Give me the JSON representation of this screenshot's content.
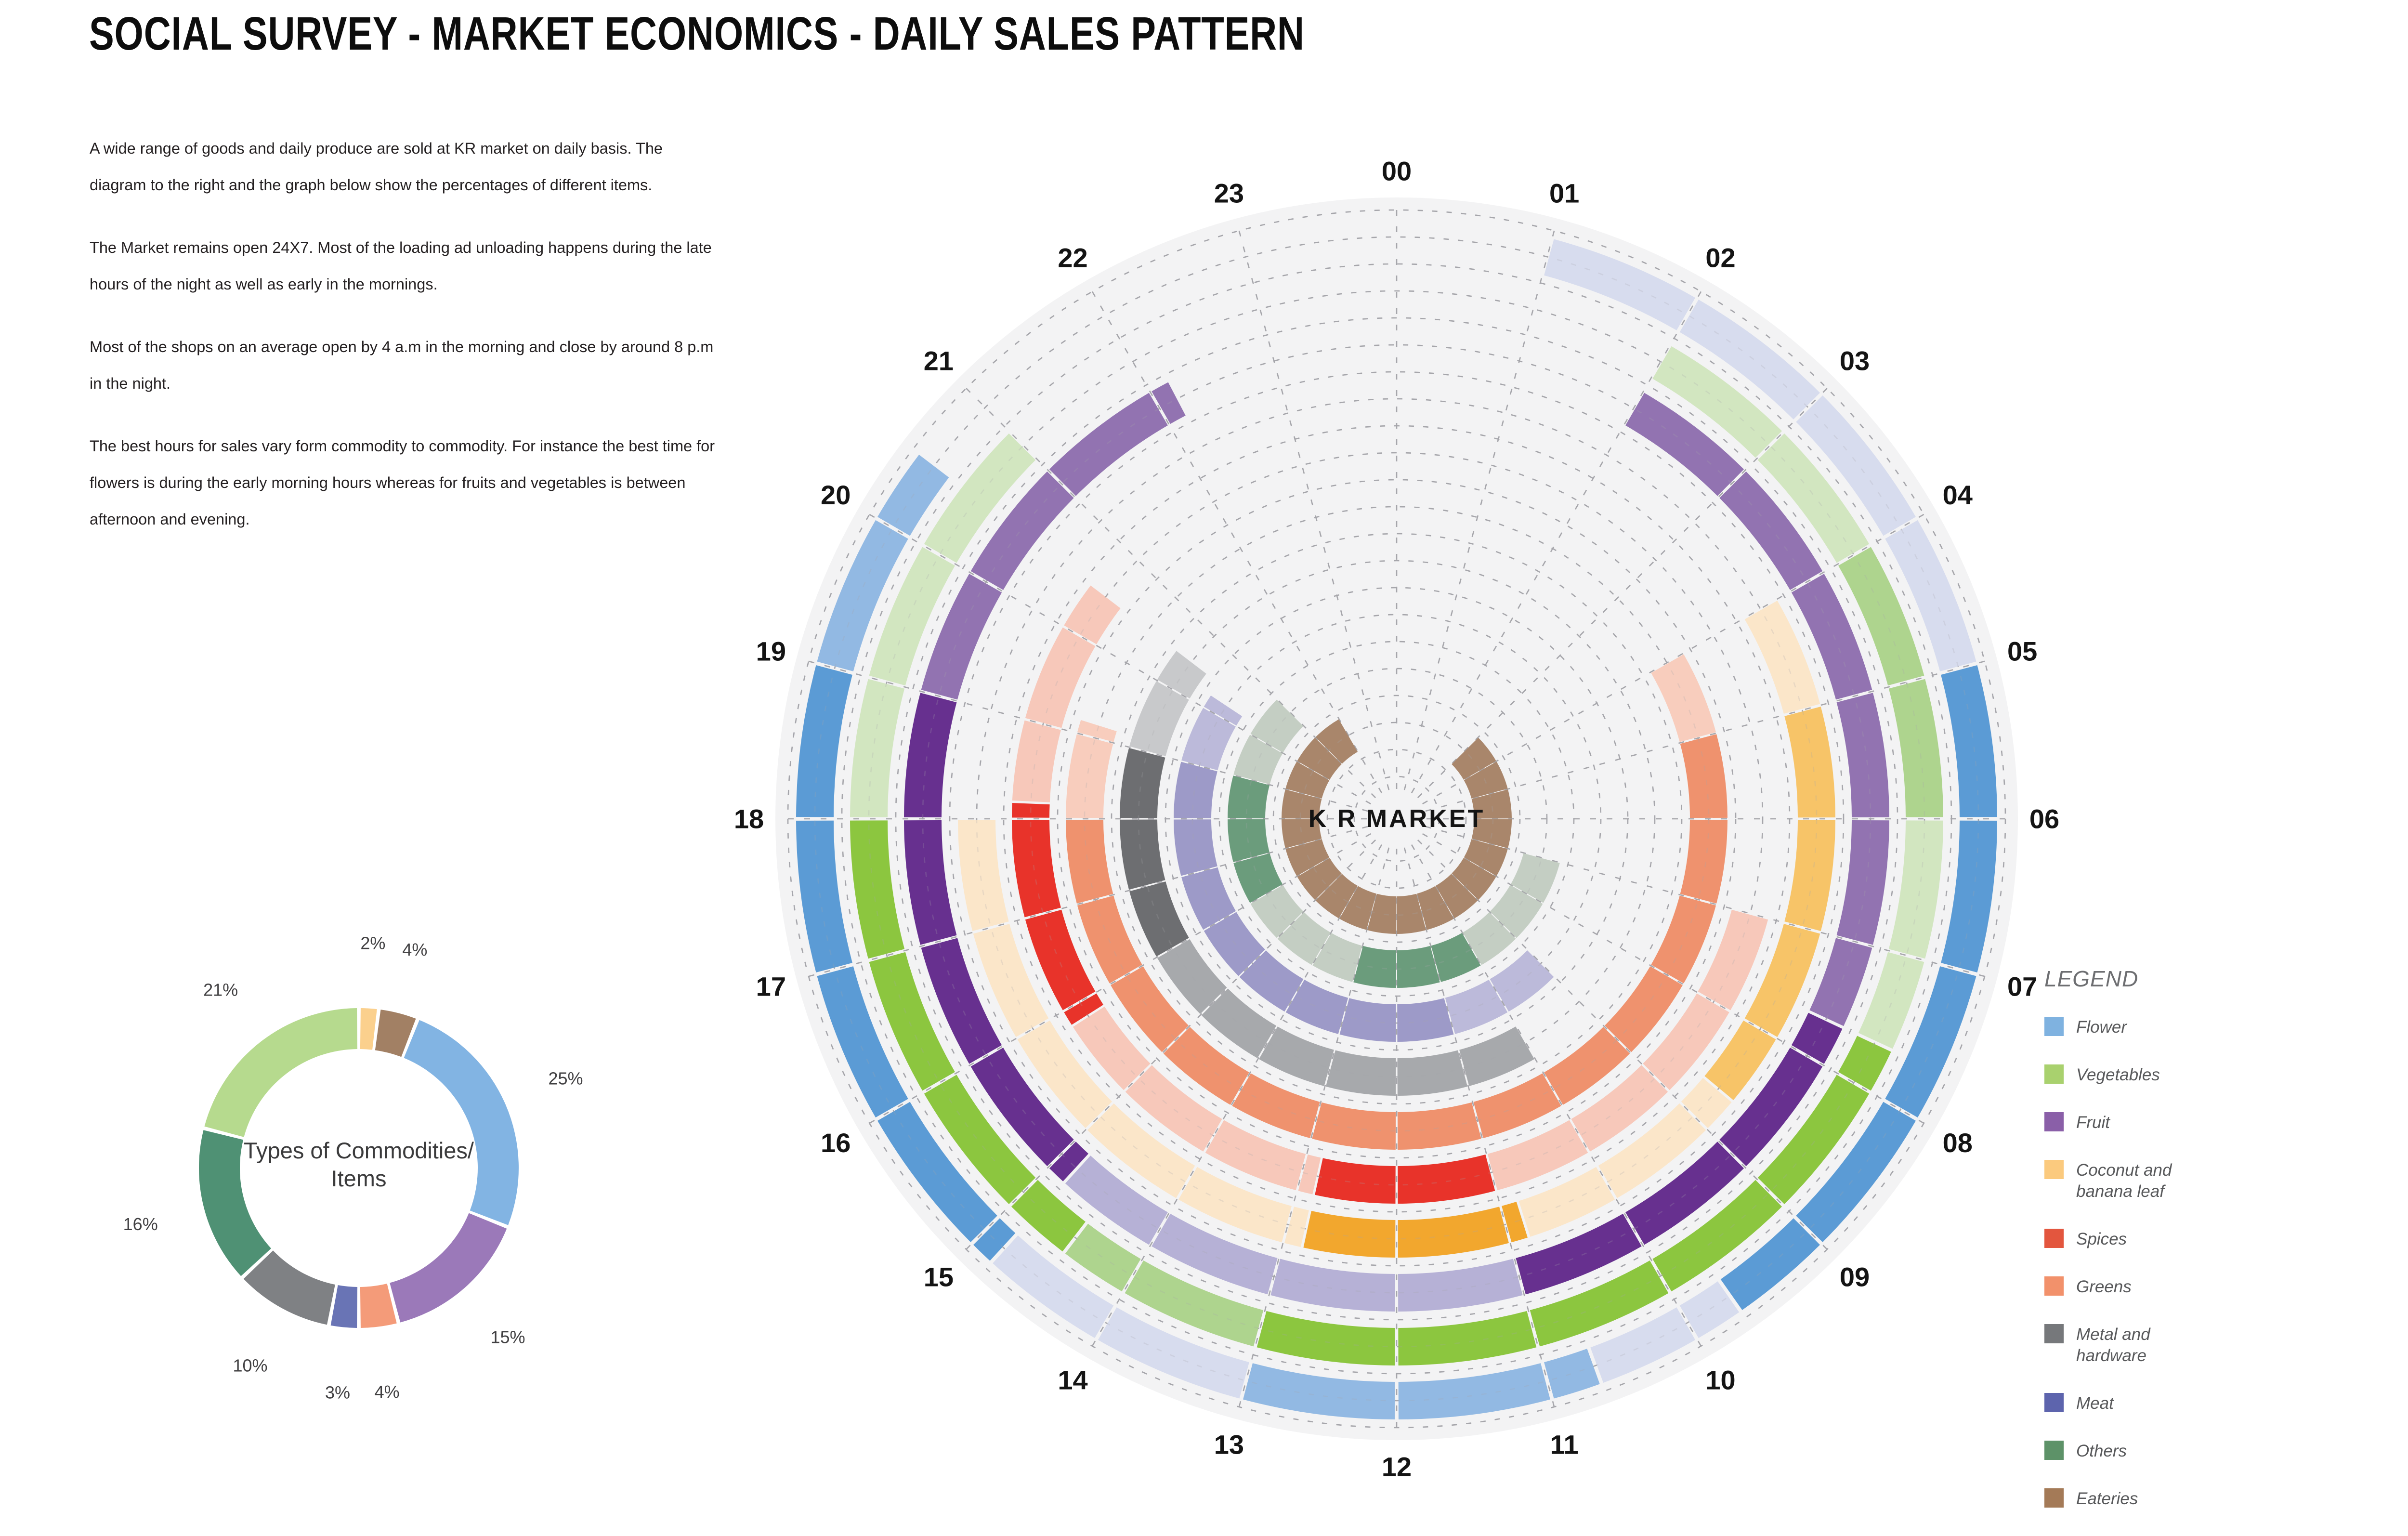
{
  "title": "SOCIAL SURVEY - MARKET ECONOMICS - DAILY SALES PATTERN",
  "paragraphs": [
    "A wide range of goods and daily produce are sold at KR market on daily basis. The diagram to the right and the graph below show the percentages of different items.",
    "The Market remains open 24X7. Most of the loading ad unloading happens during the late hours of the night as well as early in the mornings.",
    "Most of the shops on an average open by 4 a.m in the morning and close by around 8 p.m in the night.",
    "The best hours for sales vary form commodity to commodity. For instance the best time for flowers is during the early morning hours whereas for fruits and vegetables is between afternoon and evening."
  ],
  "commodities": {
    "flower": {
      "name": "Flower",
      "swatch": "#7fb2e0",
      "donut": "#82b4e3",
      "ring": {
        "D": "#5b9bd5",
        "M": "#92b9e3",
        "L": "#d7dcee"
      }
    },
    "vegetables": {
      "name": "Vegetables",
      "swatch": "#a9d16e",
      "donut": "#b6da8e",
      "ring": {
        "D": "#8cc63f",
        "M": "#aed48e",
        "L": "#d2e6c0"
      }
    },
    "fruit": {
      "name": "Fruit",
      "swatch": "#8a5fa8",
      "donut": "#9b79b9",
      "ring": {
        "D": "#67308f",
        "M": "#9273b1",
        "L": "#b6b1d6"
      }
    },
    "coconut": {
      "name": "Coconut and banana leaf",
      "swatch": "#fbca7e",
      "donut": "#fbd08d",
      "ring": {
        "D": "#f2a72e",
        "M": "#f7c468",
        "L": "#fbe6c9"
      }
    },
    "spices": {
      "name": "Spices",
      "swatch": "#e3563e",
      "donut": "#e8332a",
      "ring": {
        "D": "#e8332a",
        "M": "#ef7b62",
        "L": "#f7c8ba"
      }
    },
    "greens": {
      "name": "Greens",
      "swatch": "#f2916b",
      "donut": "#f49b79",
      "ring": {
        "D": "#ed8a63",
        "M": "#ef926e",
        "L": "#f8cdbd"
      }
    },
    "metal": {
      "name": "Metal and hardware",
      "swatch": "#76787b",
      "donut": "#7f8184",
      "ring": {
        "D": "#6d6e71",
        "M": "#a7a9ac",
        "L": "#c8c9cb"
      }
    },
    "meat": {
      "name": "Meat",
      "swatch": "#5d64ad",
      "donut": "#6974b5",
      "ring": {
        "D": "#5f66ad",
        "M": "#9d9ac8",
        "L": "#bcbada"
      }
    },
    "others": {
      "name": "Others",
      "swatch": "#5d9268",
      "donut": "#4f9174",
      "ring": {
        "D": "#6b9c7c",
        "M": "#9ab8a4",
        "L": "#c4cec3"
      }
    },
    "eateries": {
      "name": "Eateries",
      "swatch": "#a47a57",
      "donut": "#a28064",
      "ring": {
        "D": "#a9866b",
        "M": "#c4aa92",
        "L": "#dccaba"
      }
    }
  },
  "donut": {
    "title_lines": [
      "Types of Commodities/",
      "Items"
    ],
    "slices": [
      {
        "commodity": "coconut",
        "label": "2%",
        "value": 2
      },
      {
        "commodity": "eateries",
        "label": "4%",
        "value": 4
      },
      {
        "commodity": "flower",
        "label": "25%",
        "value": 25
      },
      {
        "commodity": "fruit",
        "label": "15%",
        "value": 15
      },
      {
        "commodity": "greens",
        "label": "4%",
        "value": 4
      },
      {
        "commodity": "meat",
        "label": "3%",
        "value": 3
      },
      {
        "commodity": "metal",
        "label": "10%",
        "value": 10
      },
      {
        "commodity": "others",
        "label": "16%",
        "value": 16
      },
      {
        "commodity": "vegetables",
        "label": "21%",
        "value": 21
      }
    ]
  },
  "clock": {
    "center_label": "K R MARKET",
    "hours": [
      "00",
      "01",
      "02",
      "03",
      "04",
      "05",
      "06",
      "07",
      "08",
      "09",
      "10",
      "11",
      "12",
      "13",
      "14",
      "15",
      "16",
      "17",
      "18",
      "19",
      "20",
      "21",
      "22",
      "23"
    ],
    "rings": [
      {
        "commodity": "flower",
        "segments": [
          [
            1,
            5,
            "L"
          ],
          [
            5,
            9.67,
            "D"
          ],
          [
            9.67,
            10.67,
            "L"
          ],
          [
            10.67,
            13,
            "M"
          ],
          [
            13,
            14.83,
            "L"
          ],
          [
            14.83,
            19,
            "D"
          ],
          [
            19,
            20.5,
            "M"
          ]
        ]
      },
      {
        "commodity": "vegetables",
        "segments": [
          [
            2,
            4,
            "L"
          ],
          [
            4,
            6,
            "M"
          ],
          [
            6,
            7.67,
            "L"
          ],
          [
            7.67,
            13,
            "D"
          ],
          [
            13,
            14.5,
            "M"
          ],
          [
            14.5,
            18,
            "D"
          ],
          [
            18,
            21,
            "L"
          ]
        ]
      },
      {
        "commodity": "fruit",
        "segments": [
          [
            2,
            7.67,
            "M"
          ],
          [
            7.67,
            11,
            "D"
          ],
          [
            11,
            14.83,
            "L"
          ],
          [
            14.83,
            19,
            "D"
          ],
          [
            19,
            22.17,
            "M"
          ]
        ]
      },
      {
        "commodity": "coconut",
        "segments": [
          [
            4,
            5,
            "L"
          ],
          [
            5,
            8.67,
            "M"
          ],
          [
            8.67,
            10.83,
            "L"
          ],
          [
            10.83,
            12.83,
            "D"
          ],
          [
            12.83,
            18,
            "L"
          ]
        ]
      },
      {
        "commodity": "spices",
        "segments": [
          [
            7,
            11,
            "L"
          ],
          [
            11,
            12.83,
            "D"
          ],
          [
            12.83,
            15.83,
            "L"
          ],
          [
            15.83,
            18.17,
            "D"
          ],
          [
            18.17,
            20.5,
            "L"
          ]
        ]
      },
      {
        "commodity": "greens",
        "segments": [
          [
            4,
            5,
            "L"
          ],
          [
            5,
            18,
            "M"
          ],
          [
            18,
            19.17,
            "L"
          ]
        ]
      },
      {
        "commodity": "metal",
        "segments": [
          [
            10,
            16,
            "M"
          ],
          [
            16,
            19,
            "D"
          ],
          [
            19,
            20.5,
            "L"
          ]
        ]
      },
      {
        "commodity": "meat",
        "segments": [
          [
            9,
            11,
            "L"
          ],
          [
            11,
            19,
            "M"
          ],
          [
            19,
            20.25,
            "L"
          ]
        ]
      },
      {
        "commodity": "others",
        "segments": [
          [
            7,
            10,
            "L"
          ],
          [
            10,
            13,
            "D"
          ],
          [
            13,
            16,
            "L"
          ],
          [
            16,
            19,
            "D"
          ],
          [
            19,
            21,
            "L"
          ]
        ]
      },
      {
        "commodity": "eateries",
        "segments": [
          [
            3,
            22,
            "D"
          ]
        ]
      }
    ]
  },
  "legend": {
    "title": "LEGEND",
    "items": [
      {
        "commodity": "flower",
        "label": "Flower"
      },
      {
        "commodity": "vegetables",
        "label": "Vegetables"
      },
      {
        "commodity": "fruit",
        "label": "Fruit"
      },
      {
        "commodity": "coconut",
        "label": "Coconut and banana leaf"
      },
      {
        "commodity": "spices",
        "label": "Spices"
      },
      {
        "commodity": "greens",
        "label": "Greens"
      },
      {
        "commodity": "metal",
        "label": "Metal and hardware"
      },
      {
        "commodity": "meat",
        "label": "Meat"
      },
      {
        "commodity": "others",
        "label": "Others"
      },
      {
        "commodity": "eateries",
        "label": "Eateries"
      }
    ]
  },
  "chart_data": [
    {
      "type": "pie",
      "title": "Types of Commodities/Items",
      "categories": [
        "Coconut and banana leaf",
        "Eateries",
        "Flower",
        "Fruit",
        "Greens",
        "Meat",
        "Metal and hardware",
        "Others",
        "Vegetables"
      ],
      "values": [
        2,
        4,
        25,
        15,
        4,
        3,
        10,
        16,
        21
      ],
      "unit": "percent",
      "style": "donut",
      "start_angle_deg": 0,
      "direction": "clockwise"
    },
    {
      "type": "polar-24h-schedule",
      "title": "Daily sales pattern at K R MARKET",
      "axis": "hours 00-23 clockwise from top",
      "intensity_levels": {
        "L": "light / low sales",
        "M": "medium sales",
        "D": "dark / peak sales"
      },
      "series": [
        {
          "name": "Flower",
          "active_hours": [
            [
              1,
              5,
              "L"
            ],
            [
              5,
              9.67,
              "D"
            ],
            [
              9.67,
              10.67,
              "L"
            ],
            [
              10.67,
              13,
              "M"
            ],
            [
              13,
              14.83,
              "L"
            ],
            [
              14.83,
              19,
              "D"
            ],
            [
              19,
              20.5,
              "M"
            ]
          ]
        },
        {
          "name": "Vegetables",
          "active_hours": [
            [
              2,
              4,
              "L"
            ],
            [
              4,
              6,
              "M"
            ],
            [
              6,
              7.67,
              "L"
            ],
            [
              7.67,
              13,
              "D"
            ],
            [
              13,
              14.5,
              "M"
            ],
            [
              14.5,
              18,
              "D"
            ],
            [
              18,
              21,
              "L"
            ]
          ]
        },
        {
          "name": "Fruit",
          "active_hours": [
            [
              2,
              7.67,
              "M"
            ],
            [
              7.67,
              11,
              "D"
            ],
            [
              11,
              14.83,
              "L"
            ],
            [
              14.83,
              19,
              "D"
            ],
            [
              19,
              22.17,
              "M"
            ]
          ]
        },
        {
          "name": "Coconut and banana leaf",
          "active_hours": [
            [
              4,
              5,
              "L"
            ],
            [
              5,
              8.67,
              "M"
            ],
            [
              8.67,
              10.83,
              "L"
            ],
            [
              10.83,
              12.83,
              "D"
            ],
            [
              12.83,
              18,
              "L"
            ]
          ]
        },
        {
          "name": "Spices",
          "active_hours": [
            [
              7,
              11,
              "L"
            ],
            [
              11,
              12.83,
              "D"
            ],
            [
              12.83,
              15.83,
              "L"
            ],
            [
              15.83,
              18.17,
              "D"
            ],
            [
              18.17,
              20.5,
              "L"
            ]
          ]
        },
        {
          "name": "Greens",
          "active_hours": [
            [
              4,
              5,
              "L"
            ],
            [
              5,
              18,
              "M"
            ],
            [
              18,
              19.17,
              "L"
            ]
          ]
        },
        {
          "name": "Metal and hardware",
          "active_hours": [
            [
              10,
              16,
              "M"
            ],
            [
              16,
              19,
              "D"
            ],
            [
              19,
              20.5,
              "L"
            ]
          ]
        },
        {
          "name": "Meat",
          "active_hours": [
            [
              9,
              11,
              "L"
            ],
            [
              11,
              19,
              "M"
            ],
            [
              19,
              20.25,
              "L"
            ]
          ]
        },
        {
          "name": "Others",
          "active_hours": [
            [
              7,
              10,
              "L"
            ],
            [
              10,
              13,
              "D"
            ],
            [
              13,
              16,
              "L"
            ],
            [
              16,
              19,
              "D"
            ],
            [
              19,
              21,
              "L"
            ]
          ]
        },
        {
          "name": "Eateries",
          "active_hours": [
            [
              3,
              22,
              "D"
            ]
          ]
        }
      ]
    }
  ]
}
